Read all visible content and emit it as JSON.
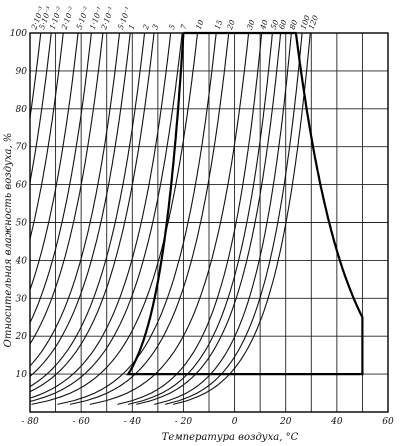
{
  "chart_data": {
    "type": "line",
    "xlabel": "Температура воздуха, °С",
    "ylabel": "Относительная влажность воздуха, %",
    "xlim": [
      -80,
      60
    ],
    "ylim": [
      0,
      100
    ],
    "x_ticks": [
      -80,
      -60,
      -40,
      -20,
      0,
      20,
      40,
      60
    ],
    "x_tick_labels": [
      "- 80",
      "- 60",
      "- 40",
      "- 20",
      "0",
      "20",
      "40",
      "60"
    ],
    "y_ticks": [
      10,
      20,
      30,
      40,
      50,
      60,
      70,
      80,
      90,
      100
    ],
    "y_tick_labels": [
      "10",
      "20",
      "30",
      "40",
      "50",
      "60",
      "70",
      "80",
      "90",
      "100"
    ],
    "x_grid_step": 10,
    "grid": true,
    "curve_labels": [
      "2·10⁻³",
      "5·10⁻³",
      "1·10⁻²",
      "2·10⁻²",
      "5·10⁻²",
      "1·10⁻¹",
      "2·10⁻¹",
      "5·10⁻¹",
      "1",
      "2",
      "3",
      "5",
      "7",
      "10",
      "15",
      "20",
      "30",
      "40",
      "50",
      "60",
      "80",
      "100",
      "120"
    ],
    "series": [
      {
        "label": "2·10⁻³",
        "x_at_100": -81.2,
        "curvature": 1.15
      },
      {
        "label": "5·10⁻³",
        "x_at_100": -75.8,
        "curvature": 1.15
      },
      {
        "label": "1·10⁻²",
        "x_at_100": -71.7,
        "curvature": 1.15
      },
      {
        "label": "2·10⁻²",
        "x_at_100": -67.0,
        "curvature": 1.15
      },
      {
        "label": "5·10⁻²",
        "x_at_100": -61.2,
        "curvature": 1.15
      },
      {
        "label": "1·10⁻¹",
        "x_at_100": -56.0,
        "curvature": 1.15
      },
      {
        "label": "2·10⁻¹",
        "x_at_100": -51.5,
        "curvature": 1.15
      },
      {
        "label": "5·10⁻¹",
        "x_at_100": -45.0,
        "curvature": 1.15
      },
      {
        "label": "1",
        "x_at_100": -40.8,
        "curvature": 1.15
      },
      {
        "label": "2",
        "x_at_100": -35.2,
        "curvature": 1.15
      },
      {
        "label": "3",
        "x_at_100": -31.5,
        "curvature": 1.15
      },
      {
        "label": "5",
        "x_at_100": -25.0,
        "curvature": 1.15
      },
      {
        "label": "7",
        "x_at_100": -20.5,
        "curvature": 1.15
      },
      {
        "label": "10",
        "x_at_100": -14.5,
        "curvature": 1.15
      },
      {
        "label": "15",
        "x_at_100": -7.2,
        "curvature": 1.1
      },
      {
        "label": "20",
        "x_at_100": -2.3,
        "curvature": 1.1
      },
      {
        "label": "30",
        "x_at_100": 5.5,
        "curvature": 1.1
      },
      {
        "label": "40",
        "x_at_100": 10.6,
        "curvature": 1.0
      },
      {
        "label": "50",
        "x_at_100": 14.8,
        "curvature": 1.0
      },
      {
        "label": "60",
        "x_at_100": 18.0,
        "curvature": 1.0
      },
      {
        "label": "80",
        "x_at_100": 22.2,
        "curvature": 0.95
      },
      {
        "label": "100",
        "x_at_100": 26.4,
        "curvature": 0.95
      },
      {
        "label": "120",
        "x_at_100": 29.6,
        "curvature": 0.95
      }
    ],
    "highlighted_region": {
      "description_from_image": "bold boundary",
      "x_range": [
        -20,
        50
      ],
      "y_range": [
        10,
        100
      ]
    }
  }
}
